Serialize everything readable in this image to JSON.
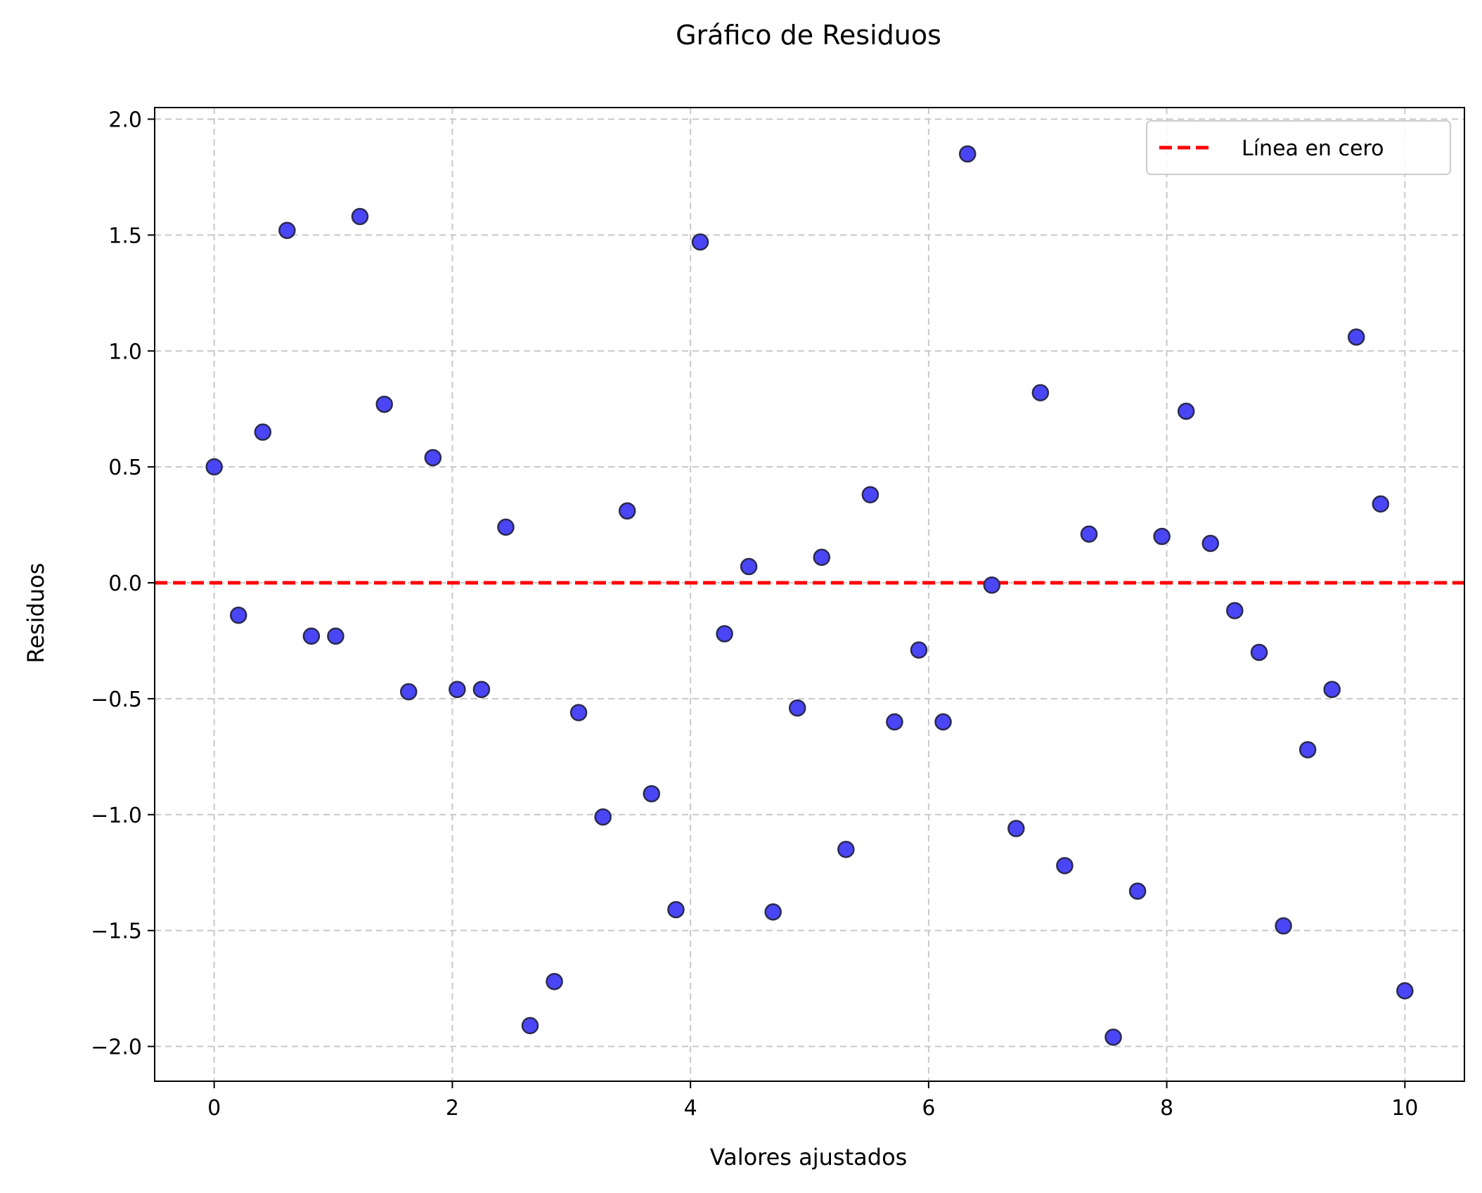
{
  "chart_data": {
    "type": "scatter",
    "title": "Gráfico de Residuos",
    "xlabel": "Valores ajustados",
    "ylabel": "Residuos",
    "xlim": [
      -0.5,
      10.5
    ],
    "ylim": [
      -2.15,
      2.05
    ],
    "xticks": [
      0,
      2,
      4,
      6,
      8,
      10
    ],
    "yticks": [
      -2.0,
      -1.5,
      -1.0,
      -0.5,
      0.0,
      0.5,
      1.0,
      1.5,
      2.0
    ],
    "grid": true,
    "legend_position": "top-right",
    "colors": {
      "points_fill": "#4a46f5",
      "points_edge": "#2a2a50",
      "zero_line": "#ff0000",
      "grid": "#c8c8c8"
    },
    "series": [
      {
        "name": "",
        "x": [
          0.0,
          0.204,
          0.408,
          0.612,
          0.816,
          1.02,
          1.224,
          1.429,
          1.633,
          1.837,
          2.041,
          2.245,
          2.449,
          2.653,
          2.857,
          3.061,
          3.265,
          3.469,
          3.673,
          3.878,
          4.082,
          4.286,
          4.49,
          4.694,
          4.898,
          5.102,
          5.306,
          5.51,
          5.714,
          5.918,
          6.122,
          6.327,
          6.531,
          6.735,
          6.939,
          7.143,
          7.347,
          7.551,
          7.755,
          7.959,
          8.163,
          8.367,
          8.571,
          8.776,
          8.98,
          9.184,
          9.388,
          9.592,
          9.796,
          10.0
        ],
        "y": [
          0.5,
          -0.14,
          0.65,
          1.52,
          -0.23,
          -0.23,
          1.58,
          0.77,
          -0.47,
          0.54,
          -0.46,
          -0.46,
          0.24,
          -1.91,
          -1.72,
          -0.56,
          -1.01,
          0.31,
          -0.91,
          -1.41,
          1.47,
          -0.22,
          0.07,
          -1.42,
          -0.54,
          0.11,
          -1.15,
          0.38,
          -0.6,
          -0.29,
          -0.6,
          1.85,
          -0.01,
          -1.06,
          0.82,
          -1.22,
          0.21,
          -1.96,
          -1.33,
          0.2,
          0.74,
          0.17,
          -0.12,
          -0.3,
          -1.48,
          -0.72,
          -0.46,
          1.06,
          0.34,
          -1.76
        ]
      }
    ],
    "zero_line": {
      "y": 0.0,
      "label": "Línea en cero",
      "style": "dashed"
    }
  }
}
